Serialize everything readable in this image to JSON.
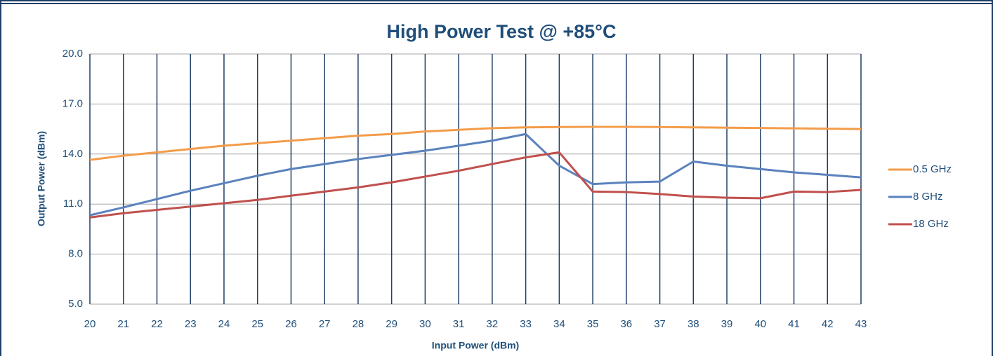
{
  "chart_data": {
    "type": "line",
    "title": "High Power Test @  +85°C",
    "x_label": "Input Power  (dBm)",
    "y_label": "Output  Power  (dBm)",
    "x": [
      20,
      21,
      22,
      23,
      24,
      25,
      26,
      27,
      28,
      29,
      30,
      31,
      32,
      33,
      34,
      35,
      36,
      37,
      38,
      39,
      40,
      41,
      42,
      43
    ],
    "xlim": [
      20,
      43
    ],
    "xticks": [
      20,
      21,
      22,
      23,
      24,
      25,
      26,
      27,
      28,
      29,
      30,
      31,
      32,
      33,
      34,
      35,
      36,
      37,
      38,
      39,
      40,
      41,
      42,
      43
    ],
    "ylim": [
      5,
      20
    ],
    "yticks": [
      {
        "value": 5,
        "label": "5.0"
      },
      {
        "value": 8,
        "label": "8.0"
      },
      {
        "value": 11,
        "label": "11.0"
      },
      {
        "value": 14,
        "label": "14.0"
      },
      {
        "value": 17,
        "label": "17.0"
      },
      {
        "value": 20,
        "label": "20.0"
      }
    ],
    "grid": true,
    "legend": "right",
    "series": [
      {
        "name": "0.5 GHz",
        "color": "#f39c4a",
        "values": [
          13.65,
          13.9,
          14.1,
          14.3,
          14.5,
          14.65,
          14.8,
          14.95,
          15.1,
          15.2,
          15.35,
          15.45,
          15.55,
          15.6,
          15.62,
          15.63,
          15.63,
          15.62,
          15.6,
          15.58,
          15.56,
          15.54,
          15.52,
          15.5
        ]
      },
      {
        "name": "8 GHz",
        "color": "#5b82bd",
        "values": [
          10.33,
          10.8,
          11.3,
          11.8,
          12.25,
          12.7,
          13.1,
          13.4,
          13.7,
          13.95,
          14.2,
          14.5,
          14.8,
          15.2,
          13.3,
          12.2,
          12.3,
          12.35,
          13.55,
          13.3,
          13.1,
          12.9,
          12.75,
          12.6
        ]
      },
      {
        "name": "18 GHz",
        "color": "#c0504d",
        "values": [
          10.2,
          10.45,
          10.65,
          10.85,
          11.05,
          11.25,
          11.5,
          11.75,
          12.0,
          12.3,
          12.65,
          13.0,
          13.4,
          13.8,
          14.1,
          11.75,
          11.72,
          11.6,
          11.45,
          11.38,
          11.35,
          11.75,
          11.72,
          11.85
        ]
      }
    ]
  }
}
